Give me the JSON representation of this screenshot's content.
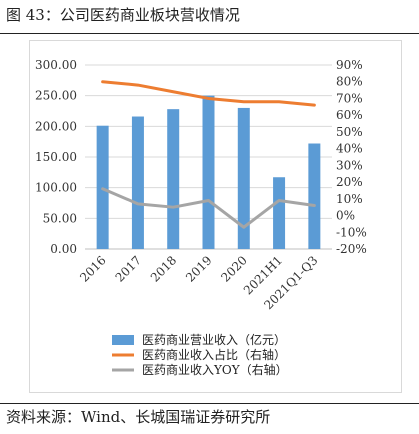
{
  "header": {
    "title": "图 43：公司医药商业板块营收情况"
  },
  "footer": {
    "source": "资料来源：Wind、长城国瑞证券研究所"
  },
  "chart_data": {
    "type": "bar",
    "categories": [
      "2016",
      "2017",
      "2018",
      "2019",
      "2020",
      "2021H1",
      "2021Q1-Q3"
    ],
    "series": [
      {
        "name": "医药商业营业收入（亿元）",
        "type": "bar",
        "axis": "left",
        "color": "#5b9bd5",
        "values": [
          201,
          216,
          228,
          250,
          230,
          117,
          172
        ]
      },
      {
        "name": "医药商业收入占比（右轴）",
        "type": "line",
        "axis": "right",
        "color": "#ed7d31",
        "values": [
          80,
          78,
          74,
          70,
          68,
          68,
          66
        ]
      },
      {
        "name": "医药商业收入YOY（右轴）",
        "type": "line",
        "axis": "right",
        "color": "#a5a5a5",
        "values": [
          16,
          7,
          5,
          9,
          -7,
          9,
          6
        ]
      }
    ],
    "y_left": {
      "min": 0,
      "max": 300,
      "step": 50,
      "ticks": [
        "0.00",
        "50.00",
        "100.00",
        "150.00",
        "200.00",
        "250.00",
        "300.00"
      ]
    },
    "y_right": {
      "min": -20,
      "max": 90,
      "step": 10,
      "ticks": [
        "-20%",
        "-10%",
        "0%",
        "10%",
        "20%",
        "30%",
        "40%",
        "50%",
        "60%",
        "70%",
        "80%",
        "90%"
      ]
    },
    "grid": true,
    "legend": "bottom"
  }
}
